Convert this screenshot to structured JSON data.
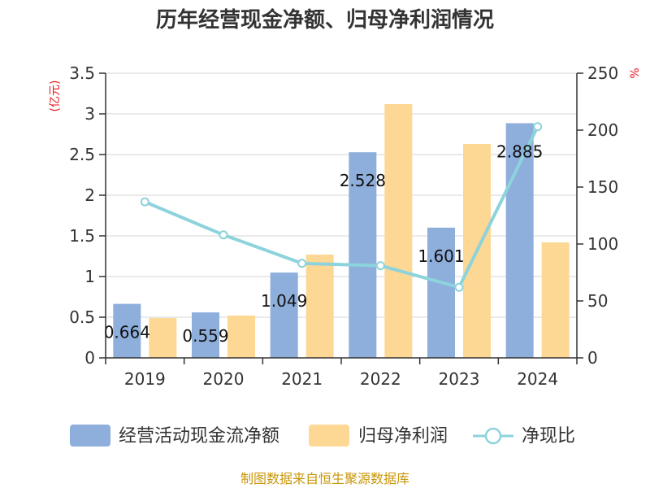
{
  "chart_data": {
    "type": "bar",
    "title": "历年经营现金净额、归母净利润情况",
    "categories": [
      "2019",
      "2020",
      "2021",
      "2022",
      "2023",
      "2024"
    ],
    "series": [
      {
        "name": "经营活动现金流净额",
        "type": "bar",
        "axis": "left",
        "color": "#8eaedc",
        "values": [
          0.664,
          0.559,
          1.049,
          2.528,
          1.601,
          2.885
        ],
        "labels": [
          "0.664",
          "0.559",
          "1.049",
          "2.528",
          "1.601",
          "2.885"
        ]
      },
      {
        "name": "归母净利润",
        "type": "bar",
        "axis": "left",
        "color": "#fdd794",
        "values": [
          0.49,
          0.52,
          1.27,
          3.12,
          2.63,
          1.42
        ]
      },
      {
        "name": "净现比",
        "type": "line",
        "axis": "right",
        "color": "#8dd3dc",
        "values": [
          137,
          108,
          83,
          81,
          62,
          203
        ]
      }
    ],
    "y_left": {
      "unit_label": "(亿元)",
      "ylim": [
        0,
        3.5
      ],
      "ticks": [
        0,
        0.5,
        1,
        1.5,
        2,
        2.5,
        3,
        3.5
      ],
      "tick_labels": [
        "0",
        "0.5",
        "1",
        "1.5",
        "2",
        "2.5",
        "3",
        "3.5"
      ]
    },
    "y_right": {
      "unit_label": "%",
      "ylim": [
        0,
        250
      ],
      "ticks": [
        0,
        50,
        100,
        150,
        200,
        250
      ],
      "tick_labels": [
        "0",
        "50",
        "100",
        "150",
        "200",
        "250"
      ]
    },
    "grid": true,
    "legend_position": "bottom"
  },
  "legend": {
    "items": [
      "经营活动现金流净额",
      "归母净利润",
      "净现比"
    ]
  },
  "source": "制图数据来自恒生聚源数据库",
  "colors": {
    "bar1": "#8eaedc",
    "bar2": "#fdd794",
    "line": "#8dd3dc",
    "unit": "#e8161d",
    "source": "#c8960a"
  }
}
